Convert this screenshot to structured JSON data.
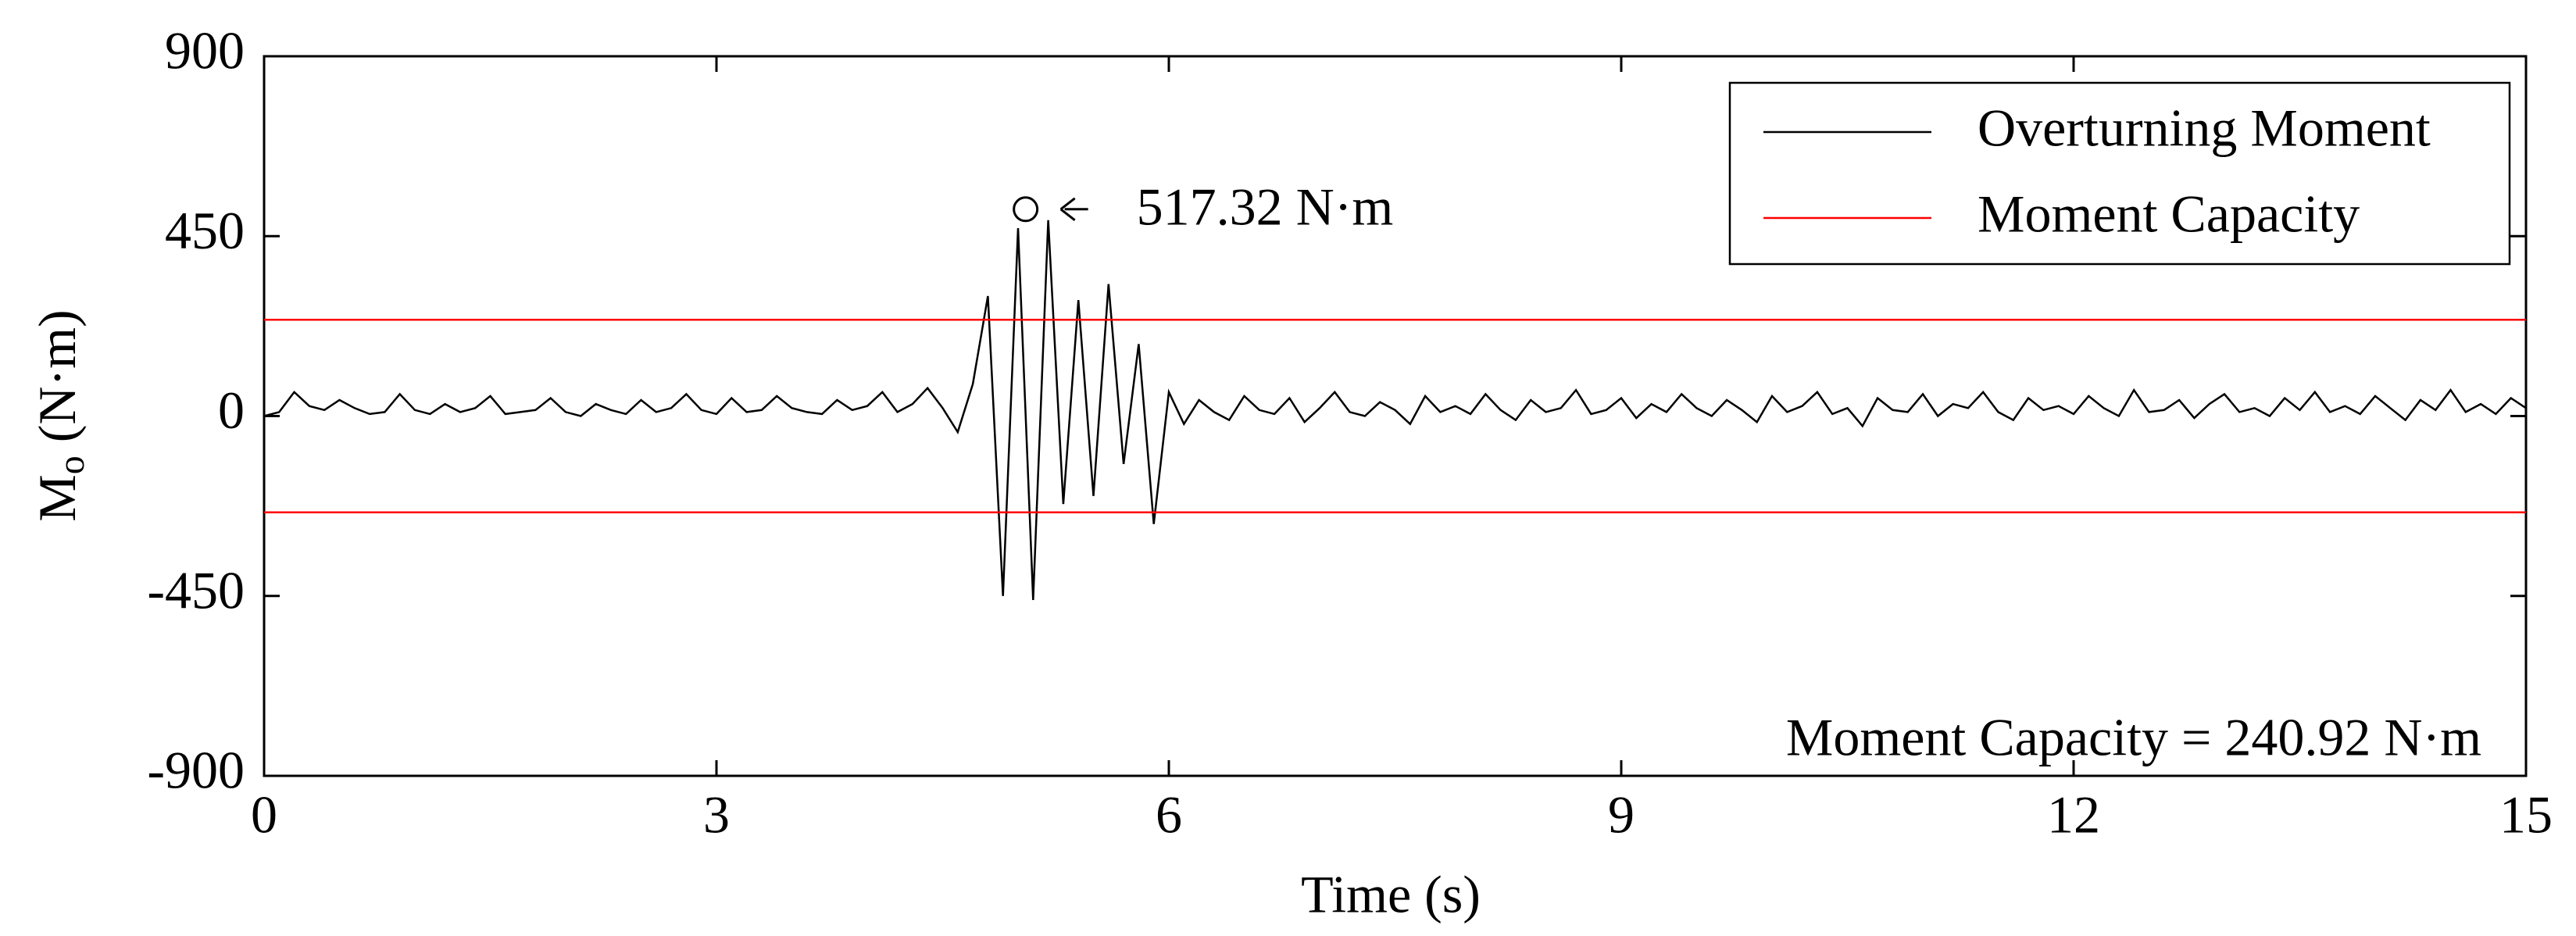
{
  "chart_data": {
    "type": "line",
    "xlabel": "Time (s)",
    "ylabel": {
      "main": "M",
      "sub": "o",
      "unit": " (N·m)"
    },
    "xlim": [
      0,
      15
    ],
    "xticks": [
      0,
      3,
      6,
      9,
      12,
      15
    ],
    "ylim": [
      -900,
      900
    ],
    "yticks": [
      -900,
      -450,
      0,
      450,
      900
    ],
    "legend": "upper right",
    "x": [
      0,
      0.1,
      0.2,
      0.3,
      0.4,
      0.5,
      0.6,
      0.7,
      0.8,
      0.9,
      1,
      1.1,
      1.2,
      1.3,
      1.4,
      1.5,
      1.6,
      1.7,
      1.8,
      1.9,
      2,
      2.1,
      2.2,
      2.3,
      2.4,
      2.5,
      2.6,
      2.7,
      2.8,
      2.9,
      3,
      3.1,
      3.2,
      3.3,
      3.4,
      3.5,
      3.6,
      3.7,
      3.8,
      3.9,
      4,
      4.1,
      4.2,
      4.3,
      4.4,
      4.5,
      4.6,
      4.7,
      4.8,
      4.9,
      5,
      5.1,
      5.2,
      5.3,
      5.4,
      5.5,
      5.6,
      5.7,
      5.8,
      5.9,
      6,
      6.1,
      6.2,
      6.3,
      6.4,
      6.5,
      6.6,
      6.7,
      6.8,
      6.9,
      7,
      7.1,
      7.2,
      7.3,
      7.4,
      7.5,
      7.6,
      7.7,
      7.8,
      7.9,
      8,
      8.1,
      8.2,
      8.3,
      8.4,
      8.5,
      8.6,
      8.7,
      8.8,
      8.9,
      9,
      9.1,
      9.2,
      9.3,
      9.4,
      9.5,
      9.6,
      9.7,
      9.8,
      9.9,
      10,
      10.1,
      10.2,
      10.3,
      10.4,
      10.5,
      10.6,
      10.7,
      10.8,
      10.9,
      11,
      11.1,
      11.2,
      11.3,
      11.4,
      11.5,
      11.6,
      11.7,
      11.8,
      11.9,
      12,
      12.1,
      12.2,
      12.3,
      12.4,
      12.5,
      12.6,
      12.7,
      12.8,
      12.9,
      13,
      13.1,
      13.2,
      13.3,
      13.4,
      13.5,
      13.6,
      13.7,
      13.8,
      13.9,
      14,
      14.1,
      14.2,
      14.3,
      14.4,
      14.5,
      14.6,
      14.7,
      14.8,
      14.9,
      15
    ],
    "series": [
      {
        "name": "Overturning Moment",
        "color": "#000000",
        "values": [
          0,
          10,
          60,
          25,
          15,
          40,
          20,
          5,
          10,
          55,
          15,
          5,
          30,
          10,
          20,
          50,
          5,
          10,
          15,
          45,
          10,
          0,
          30,
          15,
          5,
          40,
          10,
          20,
          55,
          15,
          5,
          45,
          10,
          15,
          50,
          20,
          10,
          5,
          40,
          15,
          25,
          60,
          10,
          30,
          70,
          20,
          -40,
          80,
          300,
          -450,
          470,
          -460,
          490,
          -220,
          290,
          -200,
          330,
          -120,
          180,
          -270,
          60,
          -20,
          40,
          10,
          -10,
          50,
          15,
          5,
          45,
          -15,
          20,
          60,
          10,
          0,
          35,
          15,
          -20,
          50,
          10,
          25,
          5,
          55,
          15,
          -10,
          40,
          10,
          20,
          65,
          5,
          15,
          45,
          -5,
          30,
          10,
          55,
          20,
          0,
          40,
          15,
          -15,
          50,
          10,
          25,
          60,
          5,
          20,
          -25,
          45,
          15,
          10,
          55,
          0,
          30,
          20,
          60,
          10,
          -10,
          45,
          15,
          25,
          5,
          50,
          20,
          0,
          65,
          10,
          15,
          40,
          -5,
          30,
          55,
          10,
          20,
          0,
          45,
          15,
          60,
          10,
          25,
          5,
          50,
          20,
          -10,
          40,
          15,
          65,
          10,
          30,
          5,
          45,
          20
        ]
      },
      {
        "name": "Moment Capacity",
        "color": "#ff0000",
        "levels": [
          240.92,
          -240.92
        ]
      }
    ],
    "peak": {
      "x": 5.05,
      "y": 517.32,
      "label": "517.32  N·m"
    },
    "capacity_note": "Moment Capacity =  240.92  N·m"
  }
}
